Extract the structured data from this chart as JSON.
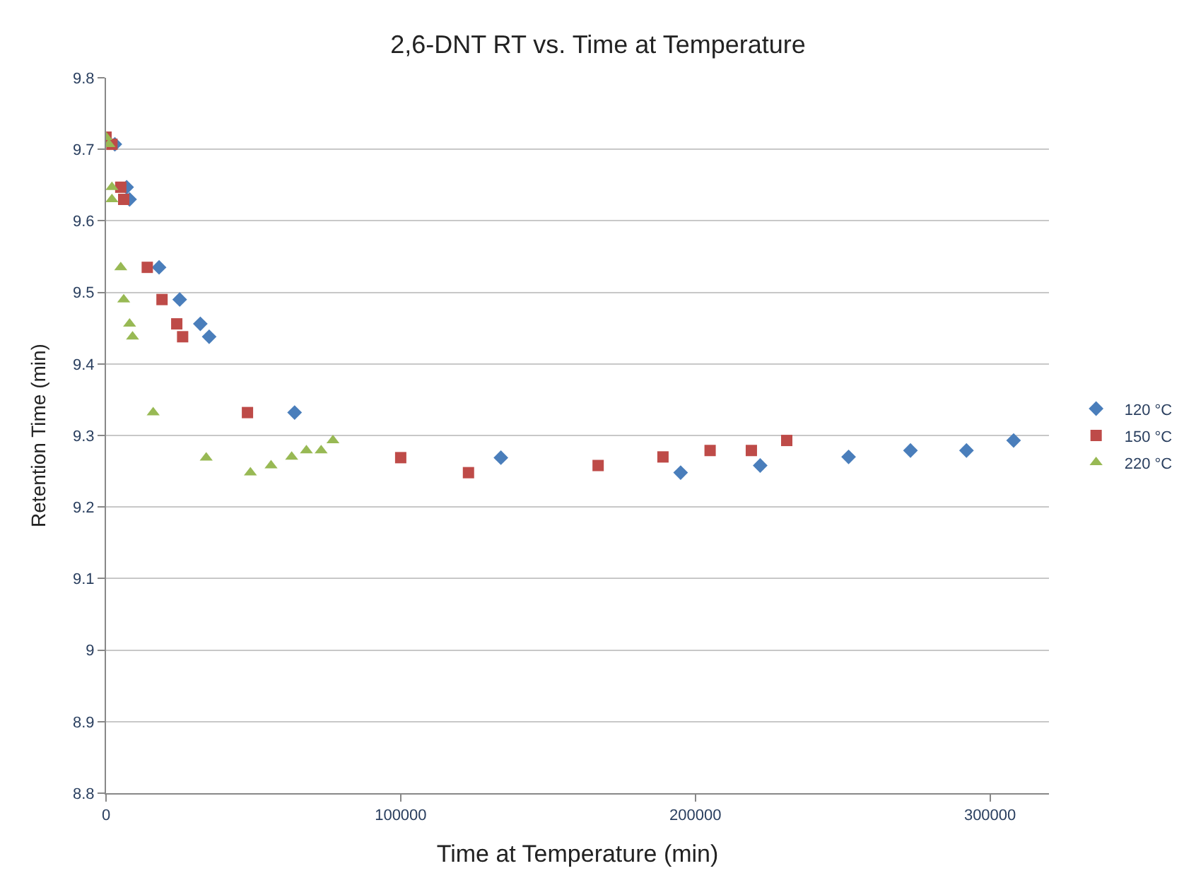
{
  "chart_data": {
    "type": "scatter",
    "title": "2,6-DNT RT vs. Time at Temperature",
    "xlabel": "Time at Temperature (min)",
    "ylabel": "Retention Time (min)",
    "xlim": [
      0,
      320000
    ],
    "xticks": [
      0,
      100000,
      200000,
      300000
    ],
    "ylim": [
      8.8,
      9.8
    ],
    "yticks": [
      8.8,
      8.9,
      9,
      9.1,
      9.2,
      9.3,
      9.4,
      9.5,
      9.6,
      9.7,
      9.8
    ],
    "grid": "y",
    "legend": "right",
    "series": [
      {
        "name": "120 °C",
        "color": "#4a7ebb",
        "marker": "diamond",
        "x": [
          3000,
          7000,
          8000,
          18000,
          25000,
          32000,
          35000,
          64000,
          134000,
          195000,
          222000,
          252000,
          273000,
          292000,
          308000
        ],
        "values": [
          9.707,
          9.647,
          9.63,
          9.535,
          9.49,
          9.456,
          9.438,
          9.332,
          9.269,
          9.248,
          9.258,
          9.27,
          9.279,
          9.279,
          9.293
        ]
      },
      {
        "name": "150 °C",
        "color": "#be4b48",
        "marker": "square",
        "x": [
          0,
          2000,
          5000,
          6000,
          14000,
          19000,
          24000,
          26000,
          48000,
          100000,
          123000,
          167000,
          189000,
          205000,
          219000,
          231000
        ],
        "values": [
          9.717,
          9.707,
          9.647,
          9.63,
          9.535,
          9.49,
          9.456,
          9.438,
          9.332,
          9.269,
          9.248,
          9.258,
          9.27,
          9.279,
          9.279,
          9.293
        ]
      },
      {
        "name": "220 °C",
        "color": "#98b954",
        "marker": "triangle",
        "x": [
          0,
          1000,
          2000,
          2000,
          5000,
          6000,
          8000,
          9000,
          16000,
          34000,
          49000,
          56000,
          63000,
          68000,
          73000,
          77000
        ],
        "values": [
          9.717,
          9.707,
          9.647,
          9.63,
          9.535,
          9.49,
          9.456,
          9.438,
          9.332,
          9.269,
          9.248,
          9.258,
          9.27,
          9.279,
          9.279,
          9.293
        ]
      }
    ]
  }
}
